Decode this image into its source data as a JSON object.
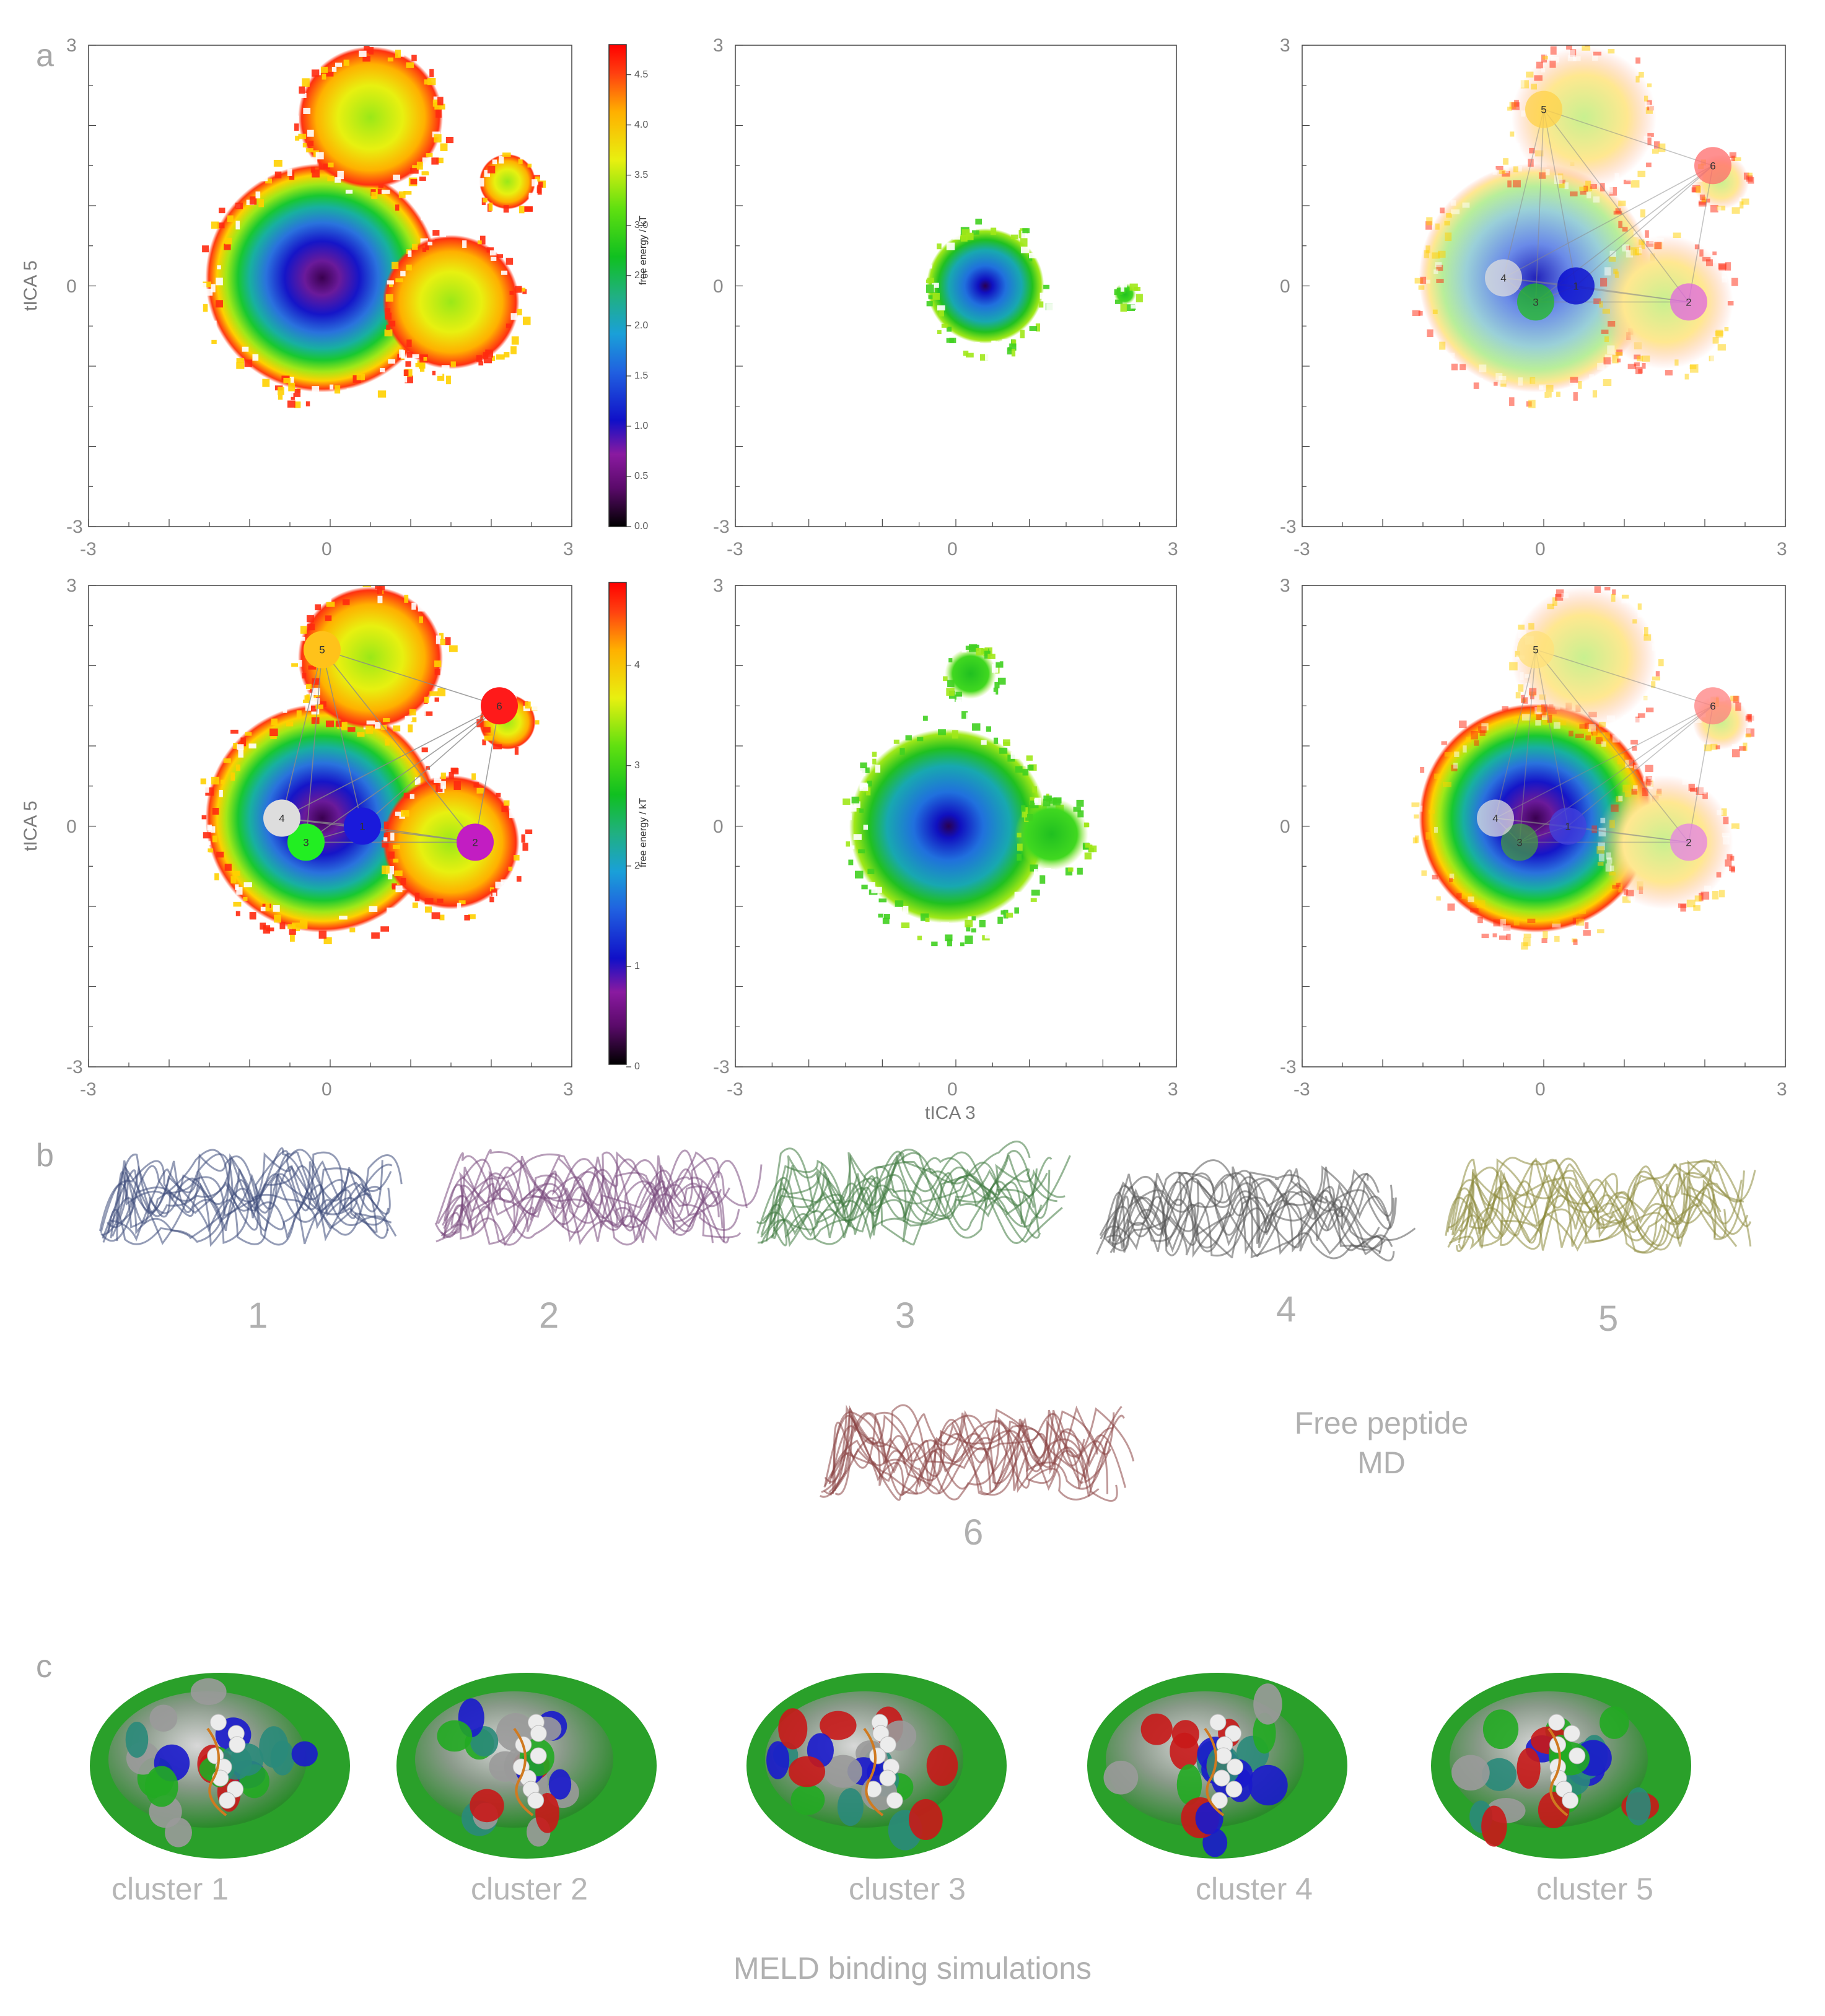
{
  "panel_letters": [
    "a",
    "b",
    "c"
  ],
  "chart_data": [
    {
      "type": "heatmap",
      "panel": "a-row1-col1",
      "xlim": [
        -3,
        3
      ],
      "ylim": [
        -3,
        3
      ],
      "x_ticks": [
        "-3",
        "0",
        "3"
      ],
      "y_ticks": [
        "3",
        "0",
        "-3"
      ],
      "ylabel": "tICA 5",
      "colorbar": {
        "label": "free energy / kT",
        "min": 0.0,
        "max": 4.8,
        "ticks": [
          "0.0",
          "0.5",
          "1.0",
          "1.5",
          "2.0",
          "2.5",
          "3.0",
          "3.5",
          "4.0",
          "4.5"
        ]
      },
      "basins": [
        {
          "x": -0.1,
          "y": 0.1,
          "radius": 1.45
        },
        {
          "x": 1.5,
          "y": -0.2,
          "radius": 0.85
        },
        {
          "x": 0.5,
          "y": 2.1,
          "radius": 0.9
        },
        {
          "x": 2.2,
          "y": 1.3,
          "radius": 0.35
        }
      ]
    },
    {
      "type": "heatmap",
      "panel": "a-row1-col2",
      "xlim": [
        -3,
        3
      ],
      "ylim": [
        -3,
        3
      ],
      "x_ticks": [
        "-3",
        "0",
        "3"
      ],
      "y_ticks": [
        "3",
        "0",
        "-3"
      ],
      "basins": [
        {
          "x": 0.4,
          "y": 0.0,
          "radius": 0.8
        },
        {
          "x": 2.3,
          "y": -0.1,
          "radius": 0.15
        }
      ]
    },
    {
      "type": "heatmap",
      "panel": "a-row1-col3",
      "xlim": [
        -3,
        3
      ],
      "ylim": [
        -3,
        3
      ],
      "x_ticks": [
        "-3",
        "0",
        "3"
      ],
      "y_ticks": [
        "3",
        "0",
        "-3"
      ],
      "states": [
        {
          "id": "1",
          "x": 0.4,
          "y": 0.0,
          "color": "#0000cc"
        },
        {
          "id": "2",
          "x": 1.8,
          "y": -0.2,
          "color": "#e066e0"
        },
        {
          "id": "3",
          "x": -0.1,
          "y": -0.2,
          "color": "#22bb22"
        },
        {
          "id": "4",
          "x": -0.5,
          "y": 0.1,
          "color": "#dddddd"
        },
        {
          "id": "5",
          "x": 0.0,
          "y": 2.2,
          "color": "#ffd24a"
        },
        {
          "id": "6",
          "x": 2.1,
          "y": 1.5,
          "color": "#ff6b6b"
        }
      ]
    },
    {
      "type": "heatmap",
      "panel": "a-row2-col1",
      "xlim": [
        -3,
        3
      ],
      "ylim": [
        -3,
        3
      ],
      "x_ticks": [
        "-3",
        "0",
        "3"
      ],
      "y_ticks": [
        "3",
        "0",
        "-3"
      ],
      "ylabel": "tICA 5",
      "colorbar": {
        "label": "free energy / kT",
        "min": 0,
        "max": 4.8,
        "ticks": [
          "0",
          "1",
          "2",
          "3",
          "4"
        ]
      },
      "states": [
        {
          "id": "1",
          "x": 0.4,
          "y": 0.0,
          "color": "#1a1adb"
        },
        {
          "id": "2",
          "x": 1.8,
          "y": -0.2,
          "color": "#c21dc2"
        },
        {
          "id": "3",
          "x": -0.3,
          "y": -0.2,
          "color": "#22ee22"
        },
        {
          "id": "4",
          "x": -0.6,
          "y": 0.1,
          "color": "#dddddd"
        },
        {
          "id": "5",
          "x": -0.1,
          "y": 2.2,
          "color": "#ffc21a"
        },
        {
          "id": "6",
          "x": 2.1,
          "y": 1.5,
          "color": "#ff1a1a"
        }
      ]
    },
    {
      "type": "heatmap",
      "panel": "a-row2-col2",
      "xlim": [
        -3,
        3
      ],
      "ylim": [
        -3,
        3
      ],
      "x_ticks": [
        "-3",
        "0",
        "3"
      ],
      "y_ticks": [
        "3",
        "0",
        "-3"
      ],
      "xlabel": "tICA 3",
      "basins": [
        {
          "x": -0.1,
          "y": 0.0,
          "radius": 1.35
        },
        {
          "x": 0.2,
          "y": 1.9,
          "radius": 0.35
        },
        {
          "x": 1.3,
          "y": -0.1,
          "radius": 0.5
        }
      ]
    },
    {
      "type": "heatmap",
      "panel": "a-row2-col3",
      "xlim": [
        -3,
        3
      ],
      "ylim": [
        -3,
        3
      ],
      "x_ticks": [
        "-3",
        "0",
        "3"
      ],
      "y_ticks": [
        "3",
        "0",
        "-3"
      ],
      "states": [
        {
          "id": "1",
          "x": 0.3,
          "y": 0.0,
          "color": "#4444dd"
        },
        {
          "id": "2",
          "x": 1.8,
          "y": -0.2,
          "color": "#e680e6"
        },
        {
          "id": "3",
          "x": -0.3,
          "y": -0.2,
          "color": "#449944"
        },
        {
          "id": "4",
          "x": -0.6,
          "y": 0.1,
          "color": "#dddddd"
        },
        {
          "id": "5",
          "x": -0.1,
          "y": 2.2,
          "color": "#ffe07a"
        },
        {
          "id": "6",
          "x": 2.1,
          "y": 1.5,
          "color": "#ff8080"
        }
      ]
    }
  ],
  "structures": [
    {
      "label": "1",
      "color": "#3d4a7a"
    },
    {
      "label": "2",
      "color": "#7a4a7e"
    },
    {
      "label": "3",
      "color": "#3f7a3f"
    },
    {
      "label": "4",
      "color": "#555555"
    },
    {
      "label": "5",
      "color": "#8d8a3d"
    },
    {
      "label": "6",
      "color": "#8a4444"
    }
  ],
  "free_peptide_caption": [
    "Free peptide",
    "MD"
  ],
  "clusters": [
    "cluster 1",
    "cluster 2",
    "cluster 3",
    "cluster 4",
    "cluster 5"
  ],
  "meld_caption": "MELD binding simulations"
}
